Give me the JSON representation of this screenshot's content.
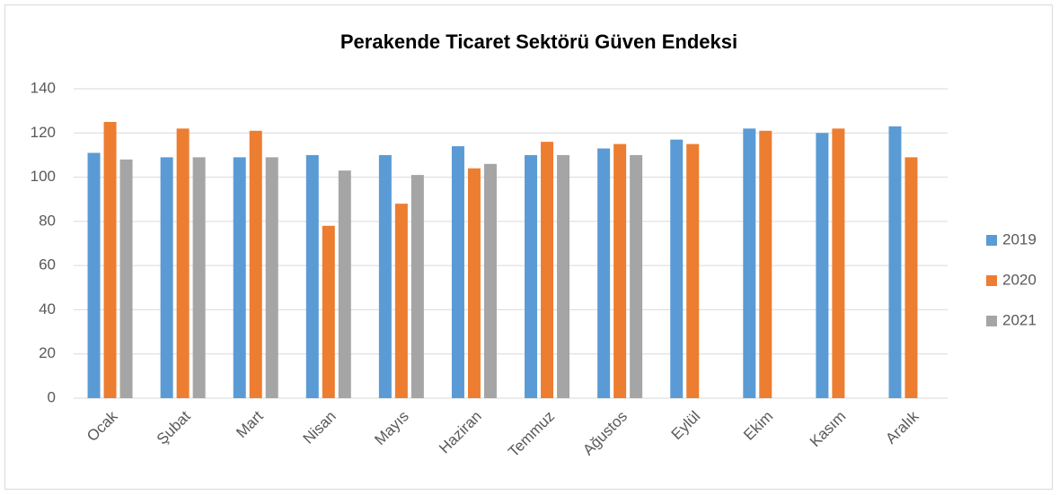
{
  "chart_data": {
    "type": "bar",
    "title": "Perakende Ticaret Sektörü Güven Endeksi",
    "categories": [
      "Ocak",
      "Şubat",
      "Mart",
      "Nisan",
      "Mayıs",
      "Haziran",
      "Temmuz",
      "Ağustos",
      "Eylül",
      "Ekim",
      "Kasım",
      "Aralık"
    ],
    "series": [
      {
        "name": "2019",
        "color": "#5b9bd5",
        "values": [
          111,
          109,
          109,
          110,
          110,
          114,
          110,
          113,
          117,
          122,
          120,
          123
        ]
      },
      {
        "name": "2020",
        "color": "#ed7d31",
        "values": [
          125,
          122,
          121,
          78,
          88,
          104,
          116,
          115,
          115,
          121,
          122,
          109
        ]
      },
      {
        "name": "2021",
        "color": "#a5a5a5",
        "values": [
          108,
          109,
          109,
          103,
          101,
          106,
          110,
          110,
          null,
          null,
          null,
          null
        ]
      }
    ],
    "ylim": [
      0,
      140
    ],
    "yticks": [
      0,
      20,
      40,
      60,
      80,
      100,
      120,
      140
    ],
    "grid": true,
    "legend": "right"
  }
}
